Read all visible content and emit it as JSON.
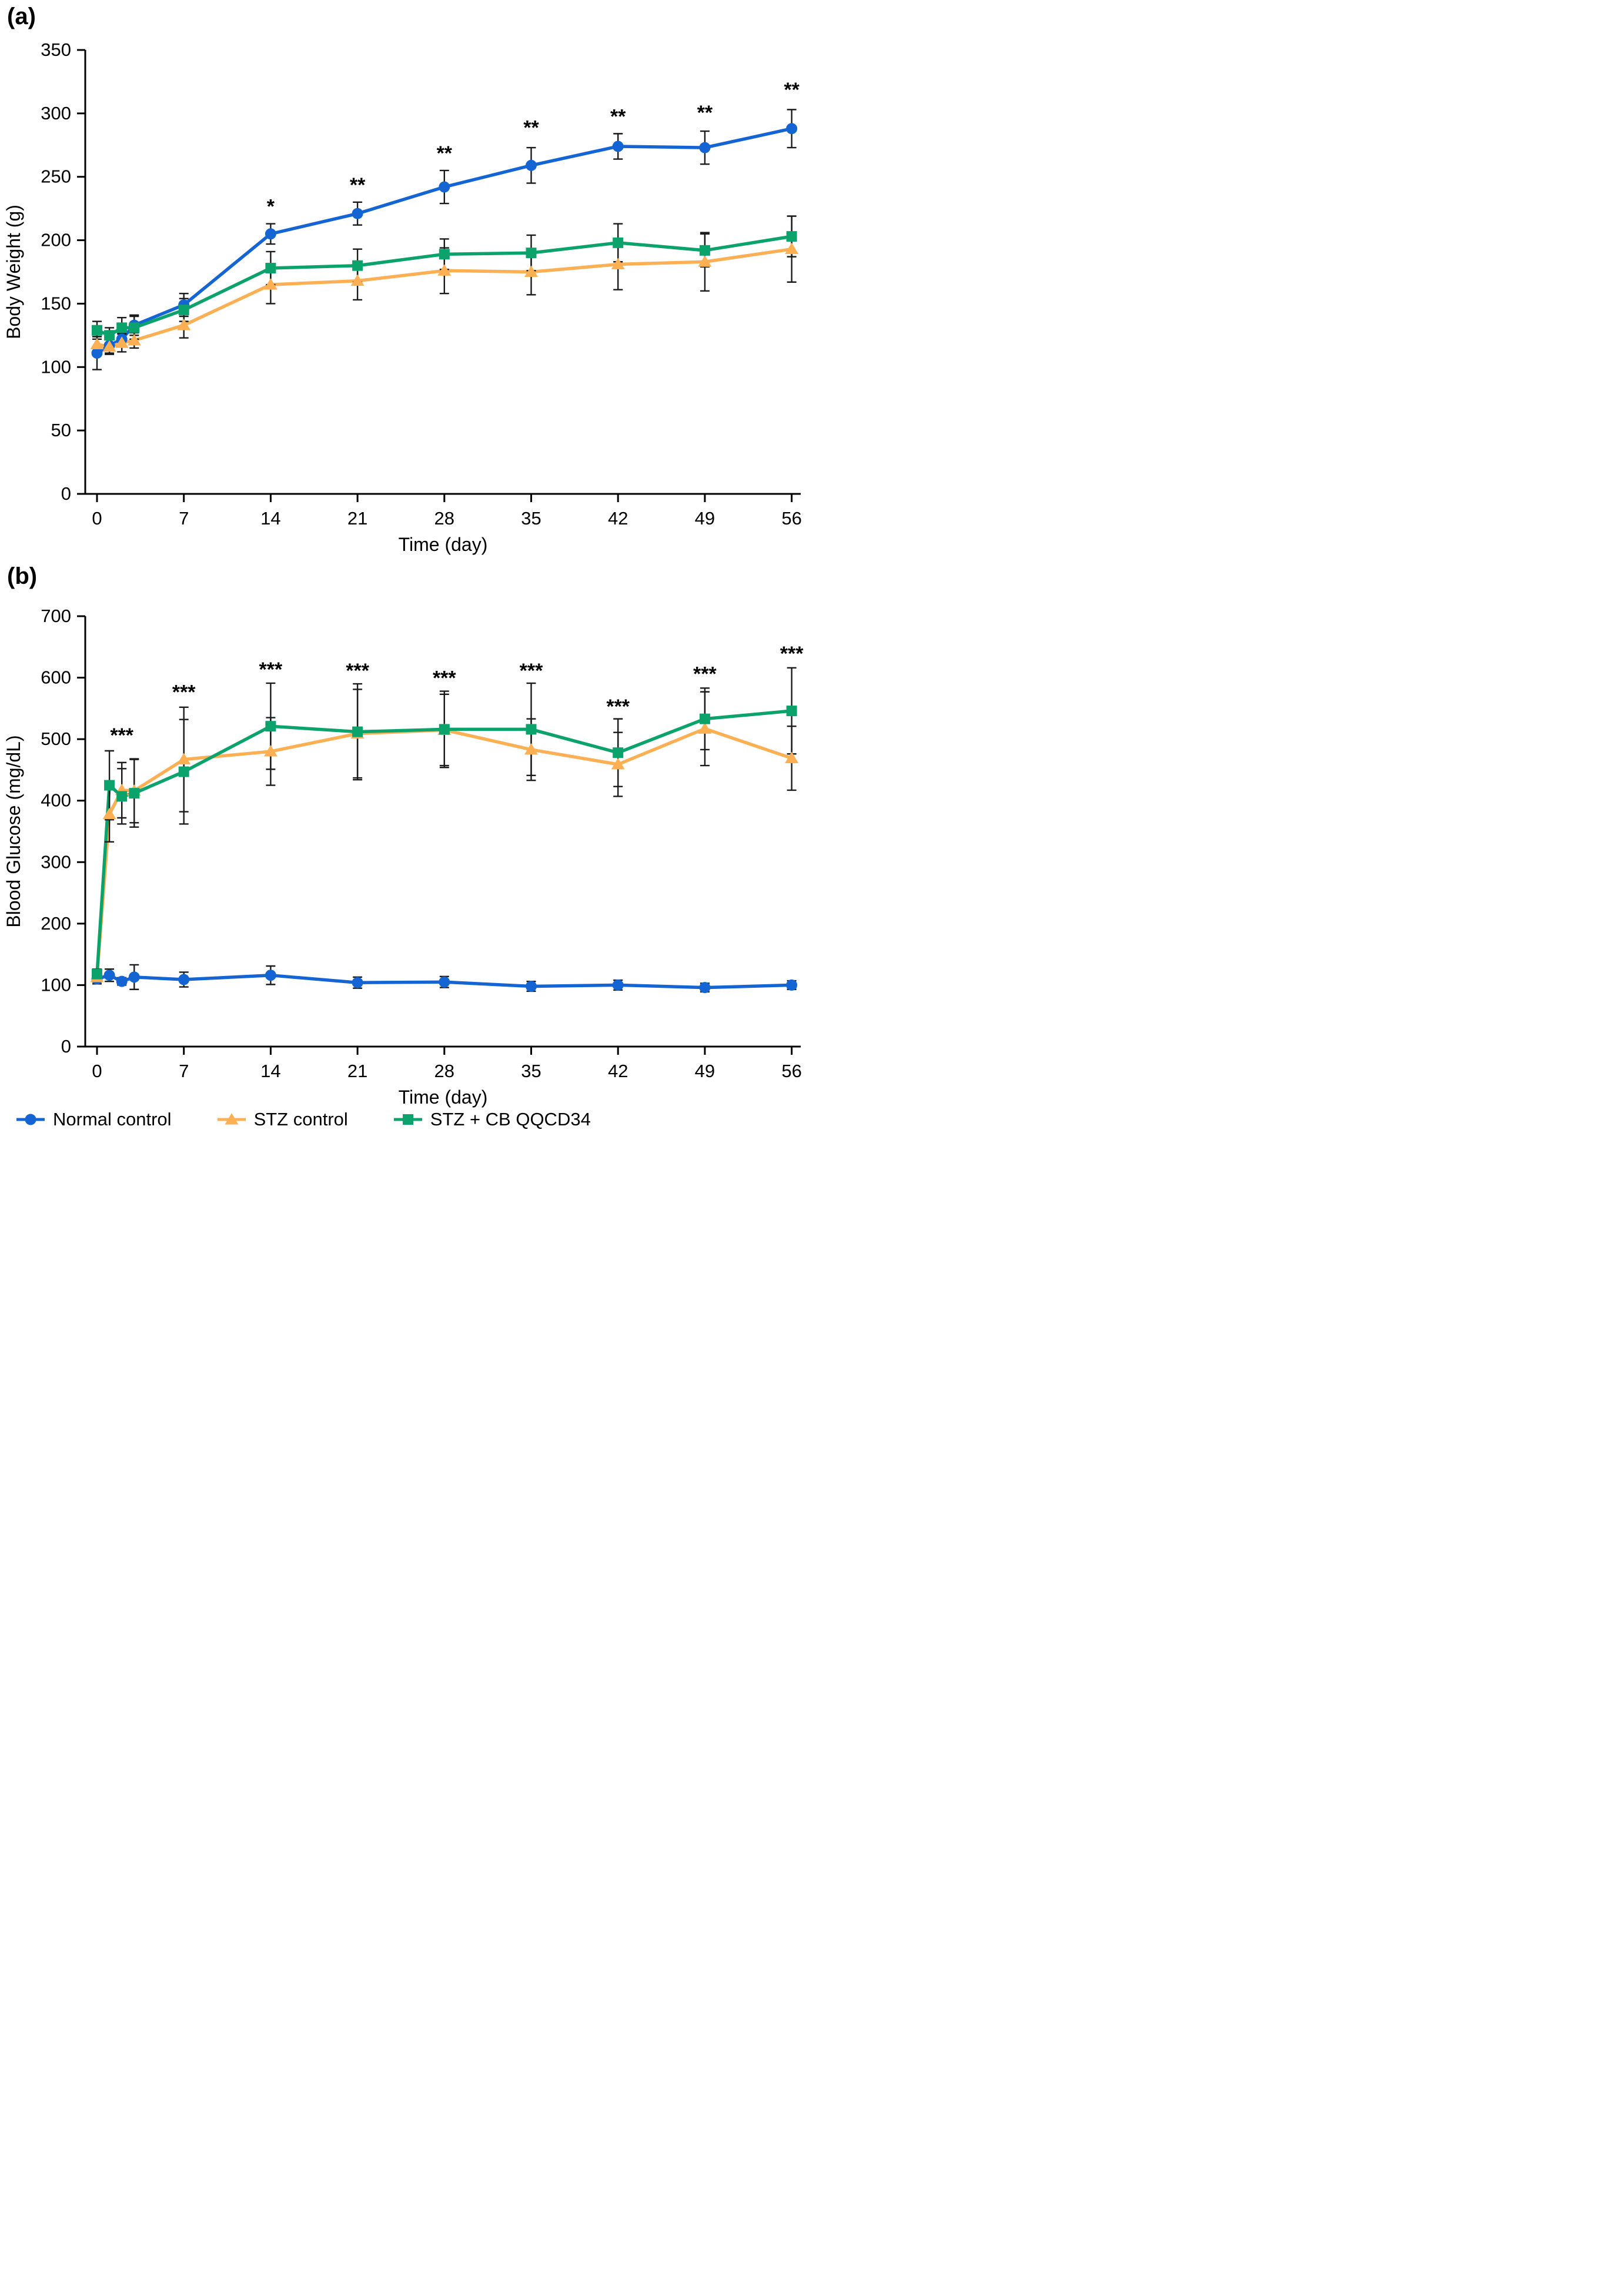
{
  "figure": {
    "panel_a_label": "(a)",
    "panel_b_label": "(b)",
    "xlabel": "Time (day)",
    "colors": {
      "normal": "#1564d4",
      "stz": "#fcb053",
      "stz_cb": "#0ca26b",
      "axis": "#000000",
      "error_bar": "#1a1a1a"
    }
  },
  "chart_data": [
    {
      "type": "line",
      "panel_label": "(a)",
      "ylabel": "Body Weight (g)",
      "xlabel": "Time (day)",
      "ylim": [
        0,
        350
      ],
      "ytick_step": 50,
      "xticks": [
        0,
        7,
        14,
        21,
        28,
        35,
        42,
        49,
        56
      ],
      "x": [
        0,
        1,
        2,
        3,
        7,
        14,
        21,
        28,
        35,
        42,
        49,
        56
      ],
      "grid": false,
      "series": [
        {
          "name": "Normal control",
          "marker": "circle",
          "color": "#1564d4",
          "values": [
            111,
            117,
            122,
            133,
            149,
            205,
            221,
            242,
            259,
            274,
            273,
            288
          ],
          "errors": [
            13,
            6,
            5,
            8,
            9,
            8,
            9,
            13,
            14,
            10,
            13,
            15
          ]
        },
        {
          "name": "STZ control",
          "marker": "triangle",
          "color": "#fcb053",
          "values": [
            118,
            116,
            119,
            121,
            133,
            165,
            168,
            176,
            175,
            181,
            183,
            193
          ],
          "errors": [
            6,
            6,
            7,
            6,
            10,
            15,
            15,
            18,
            18,
            20,
            23,
            26
          ]
        },
        {
          "name": "STZ + CB QQCD34",
          "marker": "square",
          "color": "#0ca26b",
          "values": [
            129,
            125,
            131,
            131,
            145,
            178,
            180,
            189,
            190,
            198,
            192,
            203
          ],
          "errors": [
            7,
            6,
            8,
            9,
            9,
            13,
            13,
            12,
            14,
            15,
            13,
            16
          ]
        }
      ],
      "significance": [
        {
          "day": 14,
          "label": "*",
          "y": 226
        },
        {
          "day": 21,
          "label": "**",
          "y": 243
        },
        {
          "day": 28,
          "label": "**",
          "y": 268
        },
        {
          "day": 35,
          "label": "**",
          "y": 288
        },
        {
          "day": 42,
          "label": "**",
          "y": 297
        },
        {
          "day": 49,
          "label": "**",
          "y": 300
        },
        {
          "day": 56,
          "label": "**",
          "y": 318
        }
      ]
    },
    {
      "type": "line",
      "panel_label": "(b)",
      "ylabel": "Blood Glucose (mg/dL)",
      "xlabel": "Time (day)",
      "ylim": [
        0,
        700
      ],
      "ytick_step": 100,
      "xticks": [
        0,
        7,
        14,
        21,
        28,
        35,
        42,
        49,
        56
      ],
      "x": [
        0,
        1,
        2,
        3,
        7,
        14,
        21,
        28,
        35,
        42,
        49,
        56
      ],
      "grid": false,
      "series": [
        {
          "name": "Normal control",
          "marker": "circle",
          "color": "#1564d4",
          "values": [
            110,
            116,
            106,
            113,
            109,
            116,
            104,
            105,
            98,
            100,
            96,
            100
          ],
          "errors": [
            8,
            10,
            6,
            20,
            12,
            15,
            9,
            9,
            8,
            8,
            7,
            7
          ]
        },
        {
          "name": "STZ control",
          "marker": "triangle",
          "color": "#fcb053",
          "values": [
            113,
            378,
            417,
            416,
            467,
            480,
            509,
            515,
            483,
            459,
            517,
            469
          ],
          "errors": [
            8,
            45,
            45,
            52,
            85,
            55,
            72,
            58,
            50,
            52,
            60,
            52
          ]
        },
        {
          "name": "STZ + CB QQCD34",
          "marker": "square",
          "color": "#0ca26b",
          "values": [
            118,
            425,
            407,
            412,
            447,
            521,
            512,
            516,
            516,
            478,
            533,
            546
          ],
          "errors": [
            8,
            56,
            45,
            55,
            85,
            70,
            78,
            62,
            75,
            55,
            50,
            70
          ]
        }
      ],
      "significance": [
        {
          "day": 2,
          "label": "***",
          "y": 505
        },
        {
          "day": 7,
          "label": "***",
          "y": 575
        },
        {
          "day": 14,
          "label": "***",
          "y": 612
        },
        {
          "day": 21,
          "label": "***",
          "y": 610
        },
        {
          "day": 28,
          "label": "***",
          "y": 598
        },
        {
          "day": 35,
          "label": "***",
          "y": 610
        },
        {
          "day": 42,
          "label": "***",
          "y": 552
        },
        {
          "day": 49,
          "label": "***",
          "y": 605
        },
        {
          "day": 56,
          "label": "***",
          "y": 638
        }
      ]
    }
  ],
  "legend": [
    {
      "label": "Normal control",
      "color": "#1564d4",
      "marker": "circle"
    },
    {
      "label": "STZ control",
      "color": "#fcb053",
      "marker": "triangle"
    },
    {
      "label": "STZ + CB QQCD34",
      "color": "#0ca26b",
      "marker": "square"
    }
  ]
}
